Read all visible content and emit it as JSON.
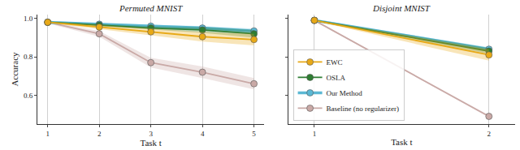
{
  "chart_data": [
    {
      "type": "line",
      "title": "Permuted MNIST",
      "x_label": "Task t",
      "y_label": "Accuracy",
      "x": [
        1,
        2,
        3,
        4,
        5
      ],
      "xlim": [
        0.8,
        5.2
      ],
      "xticks": [
        1,
        2,
        3,
        4,
        5
      ],
      "ylim": [
        0.45,
        1.02
      ],
      "yticks": [
        0.6,
        0.8,
        {
          "value": 1,
          "label": "1.0"
        }
      ],
      "grid": "x",
      "marker": "circle",
      "series": [
        {
          "name": "Baseline (no regularizer)",
          "color": "#c9a9a6",
          "values": [
            0.98,
            0.92,
            0.77,
            0.72,
            0.66
          ],
          "error": [
            0.005,
            0.015,
            0.025,
            0.03,
            0.03
          ]
        },
        {
          "name": "Our Method",
          "color": "#5bb8d4",
          "values": [
            0.98,
            0.97,
            0.96,
            0.95,
            0.935
          ],
          "error": [
            0.003,
            0.005,
            0.008,
            0.01,
            0.012
          ]
        },
        {
          "name": "OSLA",
          "color": "#2e7d32",
          "values": [
            0.98,
            0.965,
            0.95,
            0.94,
            0.92
          ],
          "error": [
            0.003,
            0.006,
            0.01,
            0.015,
            0.02
          ]
        },
        {
          "name": "EWC",
          "color": "#e8a917",
          "values": [
            0.98,
            0.955,
            0.93,
            0.905,
            0.89
          ],
          "error": [
            0.003,
            0.01,
            0.02,
            0.025,
            0.03
          ]
        }
      ]
    },
    {
      "type": "line",
      "title": "Disjoint MNIST",
      "x_label": "Task t",
      "x": [
        1,
        2
      ],
      "xlim": [
        0.85,
        2.15
      ],
      "xticks": [
        1,
        2
      ],
      "ylim": [
        0.45,
        1.02
      ],
      "yticks": [
        0.6,
        0.8,
        {
          "value": 1,
          "label": "1.0"
        }
      ],
      "tick_labels": "x",
      "grid": "x",
      "marker": "circle",
      "legend": "lower left",
      "series": [
        {
          "name": "Baseline (no regularizer)",
          "color": "#c9a9a6",
          "values": [
            0.99,
            0.49
          ],
          "error": [
            0.003,
            0.005
          ]
        },
        {
          "name": "Our Method",
          "color": "#5bb8d4",
          "values": [
            0.99,
            0.84
          ],
          "error": [
            0.003,
            0.01
          ]
        },
        {
          "name": "OSLA",
          "color": "#2e7d32",
          "values": [
            0.99,
            0.83
          ],
          "error": [
            0.003,
            0.015
          ]
        },
        {
          "name": "EWC",
          "color": "#e8a917",
          "values": [
            0.99,
            0.81
          ],
          "error": [
            0.003,
            0.03
          ]
        }
      ]
    }
  ]
}
